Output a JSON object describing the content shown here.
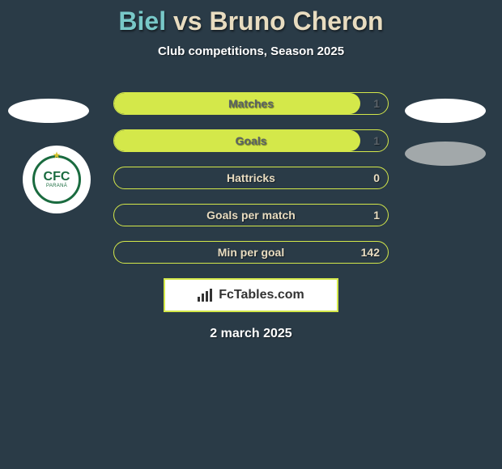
{
  "colors": {
    "bg": "#2a3b47",
    "accent": "#d4e84a",
    "p1": "#78c8c8",
    "p2": "#e8dcc0",
    "label_light": "#e8dcc0",
    "label_dark": "#5a6268",
    "val_light": "#e8dcc0",
    "val_dark": "#5a6268",
    "white": "#ffffff"
  },
  "title": {
    "p1": "Biel",
    "vs": " vs ",
    "p2": "Bruno Cheron"
  },
  "subtitle": "Club competitions, Season 2025",
  "bars": [
    {
      "label": "Matches",
      "left": "",
      "right": "1",
      "fill_pct": 90,
      "label_color": "#5a6268",
      "right_color": "#5a6268"
    },
    {
      "label": "Goals",
      "left": "",
      "right": "1",
      "fill_pct": 90,
      "label_color": "#5a6268",
      "right_color": "#5a6268"
    },
    {
      "label": "Hattricks",
      "left": "",
      "right": "0",
      "fill_pct": 0,
      "label_color": "#e8dcc0",
      "right_color": "#e8dcc0"
    },
    {
      "label": "Goals per match",
      "left": "",
      "right": "1",
      "fill_pct": 0,
      "label_color": "#e8dcc0",
      "right_color": "#e8dcc0"
    },
    {
      "label": "Min per goal",
      "left": "",
      "right": "142",
      "fill_pct": 0,
      "label_color": "#e8dcc0",
      "right_color": "#e8dcc0"
    }
  ],
  "logo_text": "FcTables.com",
  "date": "2 march 2025",
  "club": {
    "main": "CFC",
    "sub": "PARANÁ"
  }
}
